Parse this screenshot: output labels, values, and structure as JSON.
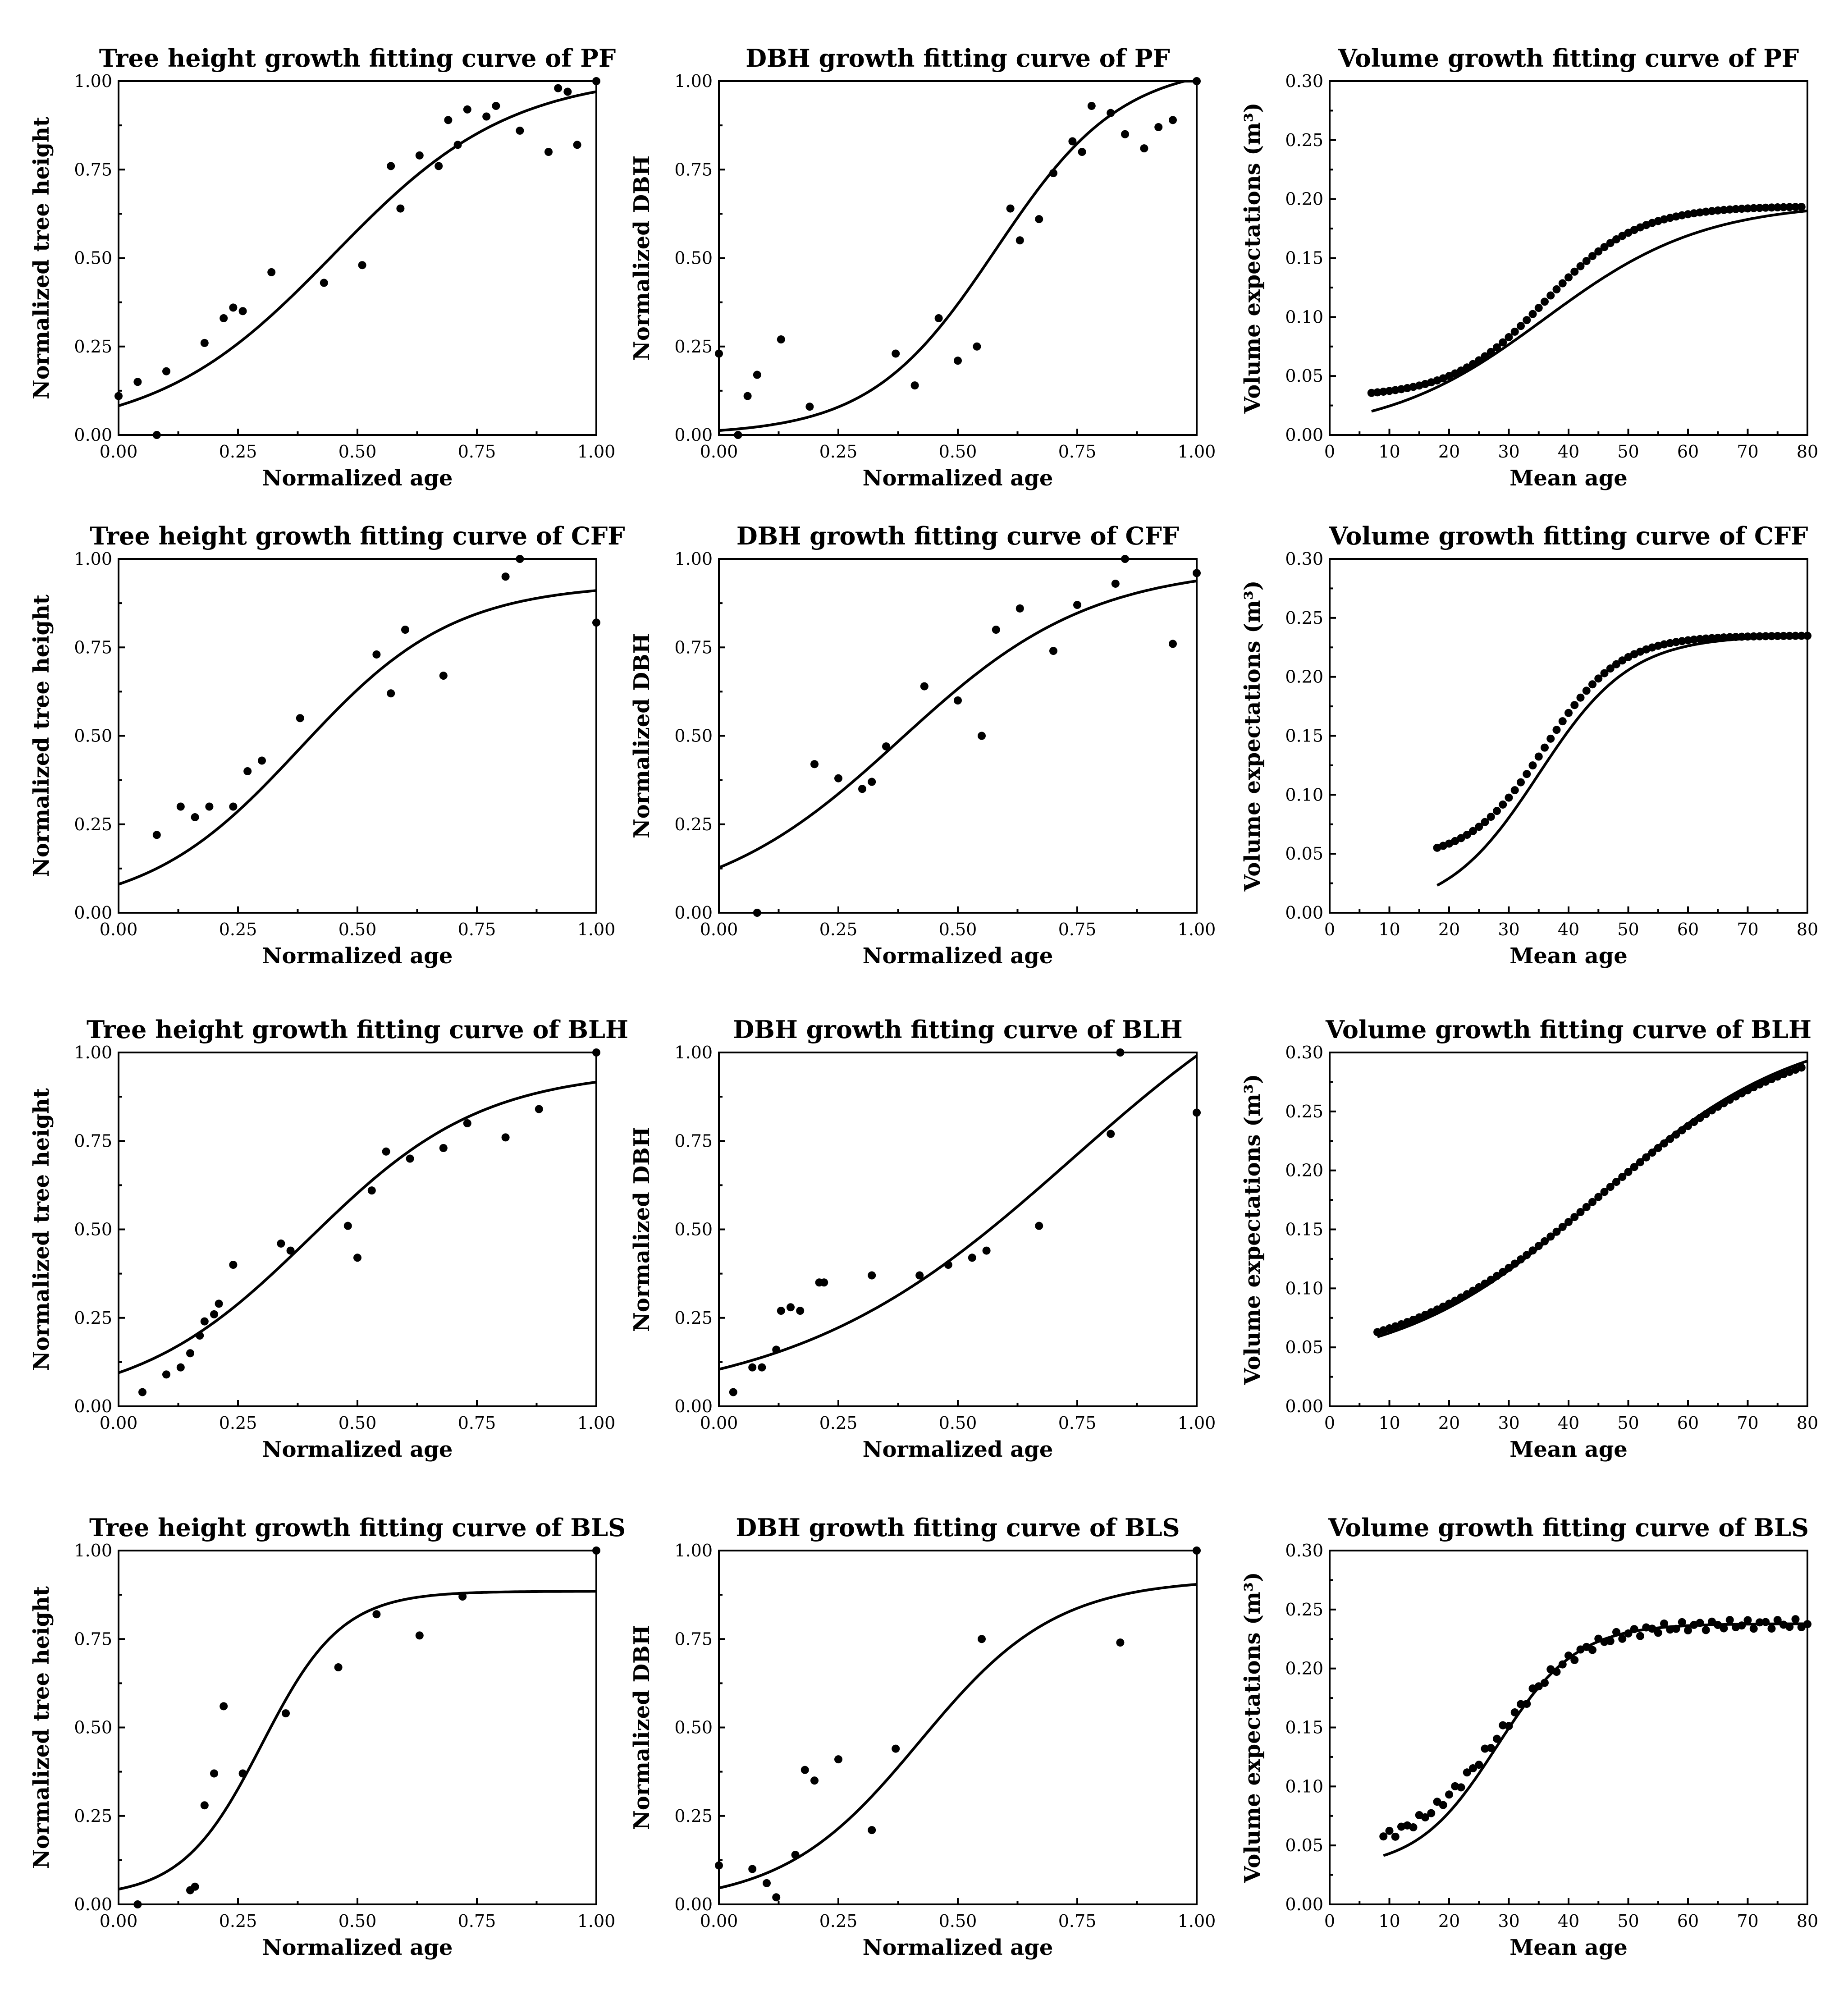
{
  "chart_data": [
    {
      "id": "ph_pf",
      "type": "scatter",
      "title": "Tree height growth fitting curve of PF",
      "xlabel": "Normalized age",
      "ylabel": "Normalized tree height",
      "xlim": [
        0,
        1
      ],
      "ylim": [
        0,
        1
      ],
      "xticks": [
        "0.00",
        "0.25",
        "0.50",
        "0.75",
        "1.00"
      ],
      "yticks": [
        "0.00",
        "0.25",
        "0.50",
        "0.75",
        "1.00"
      ],
      "points": [
        [
          0,
          0.11
        ],
        [
          0.04,
          0.15
        ],
        [
          0.08,
          0.0
        ],
        [
          0.1,
          0.18
        ],
        [
          0.18,
          0.26
        ],
        [
          0.22,
          0.33
        ],
        [
          0.24,
          0.36
        ],
        [
          0.26,
          0.35
        ],
        [
          0.32,
          0.46
        ],
        [
          0.43,
          0.43
        ],
        [
          0.51,
          0.48
        ],
        [
          0.57,
          0.76
        ],
        [
          0.59,
          0.64
        ],
        [
          0.63,
          0.79
        ],
        [
          0.67,
          0.76
        ],
        [
          0.69,
          0.89
        ],
        [
          0.71,
          0.82
        ],
        [
          0.73,
          0.92
        ],
        [
          0.77,
          0.9
        ],
        [
          0.79,
          0.93
        ],
        [
          0.84,
          0.86
        ],
        [
          0.9,
          0.8
        ],
        [
          0.92,
          0.98
        ],
        [
          0.94,
          0.97
        ],
        [
          0.96,
          0.82
        ],
        [
          1.0,
          1.0
        ]
      ],
      "fit": {
        "model": "logistic",
        "lower": 0,
        "upper": 1.02,
        "rate": 5.4,
        "midpoint": 0.45
      }
    },
    {
      "id": "dbh_pf",
      "type": "scatter",
      "title": "DBH growth fitting curve of PF",
      "xlabel": "Normalized age",
      "ylabel": "Normalized DBH",
      "xlim": [
        0,
        1
      ],
      "ylim": [
        0,
        1
      ],
      "xticks": [
        "0.00",
        "0.25",
        "0.50",
        "0.75",
        "1.00"
      ],
      "yticks": [
        "0.00",
        "0.25",
        "0.50",
        "0.75",
        "1.00"
      ],
      "points": [
        [
          0,
          0.23
        ],
        [
          0.04,
          0.0
        ],
        [
          0.06,
          0.11
        ],
        [
          0.08,
          0.17
        ],
        [
          0.13,
          0.27
        ],
        [
          0.19,
          0.08
        ],
        [
          0.37,
          0.23
        ],
        [
          0.41,
          0.14
        ],
        [
          0.46,
          0.33
        ],
        [
          0.5,
          0.21
        ],
        [
          0.54,
          0.25
        ],
        [
          0.61,
          0.64
        ],
        [
          0.63,
          0.55
        ],
        [
          0.67,
          0.61
        ],
        [
          0.7,
          0.74
        ],
        [
          0.74,
          0.83
        ],
        [
          0.76,
          0.8
        ],
        [
          0.78,
          0.93
        ],
        [
          0.82,
          0.91
        ],
        [
          0.85,
          0.85
        ],
        [
          0.89,
          0.81
        ],
        [
          0.92,
          0.87
        ],
        [
          0.95,
          0.89
        ],
        [
          1.0,
          1.0
        ]
      ],
      "fit": {
        "model": "logistic",
        "lower": 0,
        "upper": 1.05,
        "rate": 7.6,
        "midpoint": 0.58
      }
    },
    {
      "id": "vol_pf",
      "type": "scatter",
      "title": "Volume growth fitting curve of PF",
      "xlabel": "Mean age",
      "ylabel": "Volume expectations (m³)",
      "xlim": [
        0,
        80
      ],
      "ylim": [
        0,
        0.3
      ],
      "xticks": [
        "0",
        "10",
        "20",
        "30",
        "40",
        "50",
        "60",
        "70",
        "80"
      ],
      "yticks": [
        "0.00",
        "0.05",
        "0.10",
        "0.15",
        "0.20",
        "0.25",
        "0.30"
      ],
      "points": {
        "from": 7,
        "to": 79,
        "step": 1,
        "model": "logistic",
        "lower": 0.032,
        "upper": 0.194,
        "rate": 0.13,
        "midpoint": 36
      },
      "fit": {
        "model": "logistic",
        "lower": 0,
        "upper": 0.197,
        "rate": 0.075,
        "midpoint": 36
      }
    },
    {
      "id": "ph_cff",
      "type": "scatter",
      "title": "Tree height growth fitting curve of CFF",
      "xlabel": "Normalized age",
      "ylabel": "Normalized tree height",
      "xlim": [
        0,
        1
      ],
      "ylim": [
        0,
        1
      ],
      "xticks": [
        "0.00",
        "0.25",
        "0.50",
        "0.75",
        "1.00"
      ],
      "yticks": [
        "0.00",
        "0.25",
        "0.50",
        "0.75",
        "1.00"
      ],
      "points": [
        [
          0.08,
          0.22
        ],
        [
          0.13,
          0.3
        ],
        [
          0.16,
          0.27
        ],
        [
          0.19,
          0.3
        ],
        [
          0.24,
          0.3
        ],
        [
          0.27,
          0.4
        ],
        [
          0.3,
          0.43
        ],
        [
          0.38,
          0.55
        ],
        [
          0.54,
          0.73
        ],
        [
          0.57,
          0.62
        ],
        [
          0.6,
          0.8
        ],
        [
          0.68,
          0.67
        ],
        [
          0.81,
          0.95
        ],
        [
          0.84,
          1.0
        ],
        [
          1.0,
          0.82
        ]
      ],
      "fit": {
        "model": "logistic",
        "lower": 0,
        "upper": 0.93,
        "rate": 6.2,
        "midpoint": 0.38
      }
    },
    {
      "id": "dbh_cff",
      "type": "scatter",
      "title": "DBH growth fitting curve of CFF",
      "xlabel": "Normalized age",
      "ylabel": "Normalized DBH",
      "xlim": [
        0,
        1
      ],
      "ylim": [
        0,
        1
      ],
      "xticks": [
        "0.00",
        "0.25",
        "0.50",
        "0.75",
        "1.00"
      ],
      "yticks": [
        "0.00",
        "0.25",
        "0.50",
        "0.75",
        "1.00"
      ],
      "points": [
        [
          0.08,
          0.0
        ],
        [
          0.2,
          0.42
        ],
        [
          0.25,
          0.38
        ],
        [
          0.3,
          0.35
        ],
        [
          0.32,
          0.37
        ],
        [
          0.35,
          0.47
        ],
        [
          0.43,
          0.64
        ],
        [
          0.5,
          0.6
        ],
        [
          0.55,
          0.5
        ],
        [
          0.58,
          0.8
        ],
        [
          0.63,
          0.86
        ],
        [
          0.7,
          0.74
        ],
        [
          0.75,
          0.87
        ],
        [
          0.83,
          0.93
        ],
        [
          0.85,
          1.0
        ],
        [
          0.95,
          0.76
        ],
        [
          1.0,
          0.96
        ]
      ],
      "fit": {
        "model": "logistic",
        "lower": 0,
        "upper": 0.98,
        "rate": 5.0,
        "midpoint": 0.38
      }
    },
    {
      "id": "vol_cff",
      "type": "scatter",
      "title": "Volume growth fitting curve of CFF",
      "xlabel": "Mean age",
      "ylabel": "Volume expectations (m³)",
      "xlim": [
        0,
        80
      ],
      "ylim": [
        0,
        0.3
      ],
      "xticks": [
        "0",
        "10",
        "20",
        "30",
        "40",
        "50",
        "60",
        "70",
        "80"
      ],
      "yticks": [
        "0.00",
        "0.05",
        "0.10",
        "0.15",
        "0.20",
        "0.25",
        "0.30"
      ],
      "points": {
        "from": 18,
        "to": 80,
        "step": 1,
        "model": "logistic",
        "lower": 0.045,
        "upper": 0.235,
        "rate": 0.16,
        "midpoint": 36
      },
      "fit": {
        "model": "logistic",
        "lower": 0,
        "upper": 0.235,
        "rate": 0.13,
        "midpoint": 35
      }
    },
    {
      "id": "ph_blh",
      "type": "scatter",
      "title": "Tree height growth fitting curve of BLH",
      "xlabel": "Normalized age",
      "ylabel": "Normalized tree height",
      "xlim": [
        0,
        1
      ],
      "ylim": [
        0,
        1
      ],
      "xticks": [
        "0.00",
        "0.25",
        "0.50",
        "0.75",
        "1.00"
      ],
      "yticks": [
        "0.00",
        "0.25",
        "0.50",
        "0.75",
        "1.00"
      ],
      "points": [
        [
          0.05,
          0.04
        ],
        [
          0.1,
          0.09
        ],
        [
          0.13,
          0.11
        ],
        [
          0.15,
          0.15
        ],
        [
          0.17,
          0.2
        ],
        [
          0.18,
          0.24
        ],
        [
          0.2,
          0.26
        ],
        [
          0.21,
          0.29
        ],
        [
          0.24,
          0.4
        ],
        [
          0.34,
          0.46
        ],
        [
          0.36,
          0.44
        ],
        [
          0.48,
          0.51
        ],
        [
          0.5,
          0.42
        ],
        [
          0.53,
          0.61
        ],
        [
          0.56,
          0.72
        ],
        [
          0.61,
          0.7
        ],
        [
          0.68,
          0.73
        ],
        [
          0.73,
          0.8
        ],
        [
          0.81,
          0.76
        ],
        [
          0.88,
          0.84
        ],
        [
          1.0,
          1.0
        ]
      ],
      "fit": {
        "model": "logistic",
        "lower": 0,
        "upper": 0.95,
        "rate": 5.5,
        "midpoint": 0.4
      }
    },
    {
      "id": "dbh_blh",
      "type": "scatter",
      "title": "DBH growth fitting curve of BLH",
      "xlabel": "Normalized age",
      "ylabel": "Normalized DBH",
      "xlim": [
        0,
        1
      ],
      "ylim": [
        0,
        1
      ],
      "xticks": [
        "0.00",
        "0.25",
        "0.50",
        "0.75",
        "1.00"
      ],
      "yticks": [
        "0.00",
        "0.25",
        "0.50",
        "0.75",
        "1.00"
      ],
      "points": [
        [
          0.03,
          0.04
        ],
        [
          0.07,
          0.11
        ],
        [
          0.09,
          0.11
        ],
        [
          0.12,
          0.16
        ],
        [
          0.13,
          0.27
        ],
        [
          0.15,
          0.28
        ],
        [
          0.17,
          0.27
        ],
        [
          0.21,
          0.35
        ],
        [
          0.22,
          0.35
        ],
        [
          0.32,
          0.37
        ],
        [
          0.42,
          0.37
        ],
        [
          0.48,
          0.4
        ],
        [
          0.53,
          0.42
        ],
        [
          0.56,
          0.44
        ],
        [
          0.67,
          0.51
        ],
        [
          0.82,
          0.77
        ],
        [
          0.84,
          1.0
        ],
        [
          1.0,
          0.83
        ]
      ],
      "fit": {
        "model": "logistic",
        "lower": 0,
        "upper": 1.4,
        "rate": 3.4,
        "midpoint": 0.74
      }
    },
    {
      "id": "vol_blh",
      "type": "scatter",
      "title": "Volume growth fitting curve of BLH",
      "xlabel": "Mean age",
      "ylabel": "Volume expectations (m³)",
      "xlim": [
        0,
        80
      ],
      "ylim": [
        0,
        0.3
      ],
      "xticks": [
        "0",
        "10",
        "20",
        "30",
        "40",
        "50",
        "60",
        "70",
        "80"
      ],
      "yticks": [
        "0.00",
        "0.05",
        "0.10",
        "0.15",
        "0.20",
        "0.25",
        "0.30"
      ],
      "points": {
        "from": 8,
        "to": 79,
        "step": 1,
        "model": "logistic",
        "lower": 0.035,
        "upper": 0.32,
        "rate": 0.06,
        "midpoint": 45
      },
      "fit": {
        "model": "logistic",
        "lower": 0.03,
        "upper": 0.325,
        "rate": 0.06,
        "midpoint": 45
      }
    },
    {
      "id": "ph_bls",
      "type": "scatter",
      "title": "Tree height growth fitting curve of BLS",
      "xlabel": "Normalized age",
      "ylabel": "Normalized tree height",
      "xlim": [
        0,
        1
      ],
      "ylim": [
        0,
        1
      ],
      "xticks": [
        "0.00",
        "0.25",
        "0.50",
        "0.75",
        "1.00"
      ],
      "yticks": [
        "0.00",
        "0.25",
        "0.50",
        "0.75",
        "1.00"
      ],
      "points": [
        [
          0.04,
          0.0
        ],
        [
          0.15,
          0.04
        ],
        [
          0.16,
          0.05
        ],
        [
          0.18,
          0.28
        ],
        [
          0.2,
          0.37
        ],
        [
          0.22,
          0.56
        ],
        [
          0.26,
          0.37
        ],
        [
          0.35,
          0.54
        ],
        [
          0.46,
          0.67
        ],
        [
          0.54,
          0.82
        ],
        [
          0.63,
          0.76
        ],
        [
          0.72,
          0.87
        ],
        [
          1.0,
          1.0
        ]
      ],
      "fit": {
        "model": "logistic",
        "lower": 0.02,
        "upper": 0.885,
        "rate": 12,
        "midpoint": 0.3
      }
    },
    {
      "id": "dbh_bls",
      "type": "scatter",
      "title": "DBH growth fitting curve of BLS",
      "xlabel": "Normalized age",
      "ylabel": "Normalized DBH",
      "xlim": [
        0,
        1
      ],
      "ylim": [
        0,
        1
      ],
      "xticks": [
        "0.00",
        "0.25",
        "0.50",
        "0.75",
        "1.00"
      ],
      "yticks": [
        "0.00",
        "0.25",
        "0.50",
        "0.75",
        "1.00"
      ],
      "points": [
        [
          0,
          0.11
        ],
        [
          0.07,
          0.1
        ],
        [
          0.1,
          0.06
        ],
        [
          0.12,
          0.02
        ],
        [
          0.16,
          0.14
        ],
        [
          0.18,
          0.38
        ],
        [
          0.2,
          0.35
        ],
        [
          0.25,
          0.41
        ],
        [
          0.32,
          0.21
        ],
        [
          0.37,
          0.44
        ],
        [
          0.55,
          0.75
        ],
        [
          0.84,
          0.74
        ],
        [
          1.0,
          1.0
        ]
      ],
      "fit": {
        "model": "logistic",
        "lower": 0,
        "upper": 0.92,
        "rate": 7.0,
        "midpoint": 0.42
      }
    },
    {
      "id": "vol_bls",
      "type": "scatter",
      "title": "Volume growth fitting curve of BLS",
      "xlabel": "Mean age",
      "ylabel": "Volume expectations (m³)",
      "xlim": [
        0,
        80
      ],
      "ylim": [
        0,
        0.3
      ],
      "xticks": [
        "0",
        "10",
        "20",
        "30",
        "40",
        "50",
        "60",
        "70",
        "80"
      ],
      "yticks": [
        "0.00",
        "0.05",
        "0.10",
        "0.15",
        "0.20",
        "0.25",
        "0.30"
      ],
      "points": {
        "from": 9,
        "to": 80,
        "step": 1,
        "model": "logistic",
        "lower": 0.045,
        "upper": 0.238,
        "rate": 0.14,
        "midpoint": 28,
        "jitter": 0.004
      },
      "fit": {
        "model": "logistic",
        "lower": 0.03,
        "upper": 0.238,
        "rate": 0.15,
        "midpoint": 28
      }
    }
  ]
}
